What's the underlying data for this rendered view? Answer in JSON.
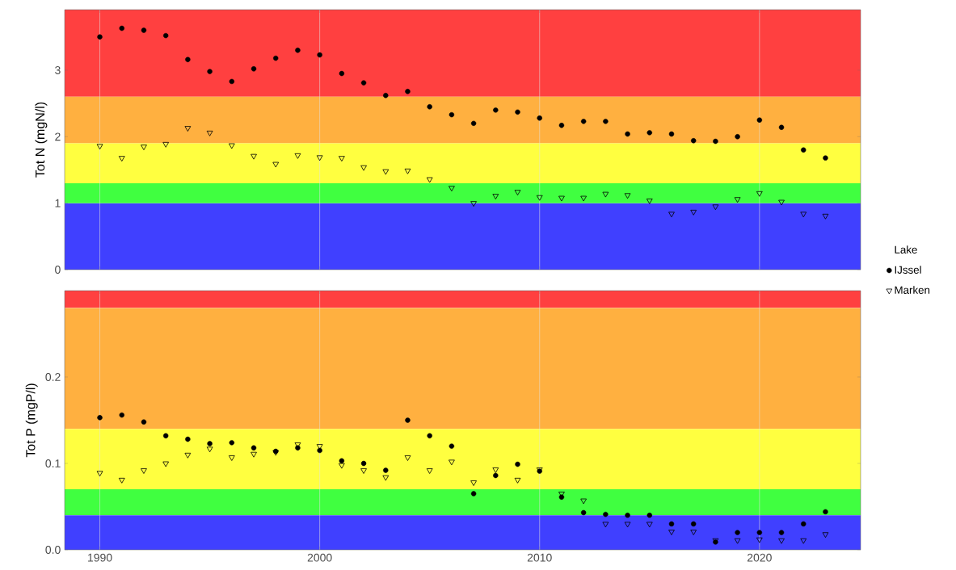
{
  "chart_data": [
    {
      "type": "scatter",
      "ylabel": "Tot N (mgN/l)",
      "legend_title": "Lake",
      "legend": "right",
      "grid": "x",
      "tick_labels": "y",
      "x": [
        1990,
        1991,
        1992,
        1993,
        1994,
        1995,
        1996,
        1997,
        1998,
        1999,
        2000,
        2001,
        2002,
        2003,
        2004,
        2005,
        2006,
        2007,
        2008,
        2009,
        2010,
        2011,
        2012,
        2013,
        2014,
        2015,
        2016,
        2017,
        2018,
        2019,
        2020,
        2021,
        2022,
        2023
      ],
      "xlim": [
        1988.4,
        2024.6
      ],
      "xticks": [
        1990,
        2000,
        2010,
        2020
      ],
      "ylim": [
        0,
        3.91
      ],
      "yticks": [
        0,
        1,
        2,
        3
      ],
      "bands": [
        {
          "axis": "y",
          "from": 2.6,
          "to": 3.91,
          "color": "#ff4040"
        },
        {
          "axis": "y",
          "from": 1.9,
          "to": 2.6,
          "color": "#ffb040"
        },
        {
          "axis": "y",
          "from": 1.3,
          "to": 1.9,
          "color": "#ffff40"
        },
        {
          "axis": "y",
          "from": 1.0,
          "to": 1.3,
          "color": "#40ff40"
        },
        {
          "axis": "y",
          "from": 0,
          "to": 1.0,
          "color": "#4040ff"
        }
      ],
      "series": [
        {
          "name": "IJssel",
          "color": "#000000",
          "marker": "circle",
          "values": [
            3.5,
            3.63,
            3.6,
            3.52,
            3.16,
            2.98,
            2.83,
            3.02,
            3.18,
            3.3,
            3.23,
            2.95,
            2.81,
            2.62,
            2.68,
            2.45,
            2.33,
            2.2,
            2.4,
            2.37,
            2.28,
            2.17,
            2.23,
            2.23,
            2.04,
            2.06,
            2.04,
            1.94,
            1.93,
            2.0,
            2.25,
            2.14,
            1.8,
            1.68
          ]
        },
        {
          "name": "Marken",
          "color": "#000000",
          "marker": "triangle",
          "values": [
            1.86,
            1.68,
            1.85,
            1.89,
            2.13,
            2.06,
            1.87,
            1.71,
            1.59,
            1.72,
            1.69,
            1.68,
            1.54,
            1.48,
            1.49,
            1.36,
            1.23,
            1.0,
            1.11,
            1.17,
            1.09,
            1.08,
            1.08,
            1.14,
            1.12,
            1.04,
            0.84,
            0.87,
            0.95,
            1.06,
            1.15,
            1.02,
            0.84,
            0.81
          ]
        }
      ]
    },
    {
      "type": "scatter",
      "ylabel": "Tot P (mgP/l)",
      "grid": "x",
      "x": [
        1990,
        1991,
        1992,
        1993,
        1994,
        1995,
        1996,
        1997,
        1998,
        1999,
        2000,
        2001,
        2002,
        2003,
        2004,
        2005,
        2006,
        2007,
        2008,
        2009,
        2010,
        2011,
        2012,
        2013,
        2014,
        2015,
        2016,
        2017,
        2018,
        2019,
        2020,
        2021,
        2022,
        2023
      ],
      "xlim": [
        1988.4,
        2024.6
      ],
      "xticks": [
        1990,
        2000,
        2010,
        2020
      ],
      "ylim": [
        0,
        0.3
      ],
      "yticks": [
        {
          "value": 0,
          "label": "0.0"
        },
        {
          "value": 0.1,
          "label": "0.1"
        },
        {
          "value": 0.2,
          "label": "0.2"
        }
      ],
      "bands": [
        {
          "axis": "y",
          "from": 0.28,
          "to": 0.3,
          "color": "#ff4040"
        },
        {
          "axis": "y",
          "from": 0.14,
          "to": 0.28,
          "color": "#ffb040"
        },
        {
          "axis": "y",
          "from": 0.07,
          "to": 0.14,
          "color": "#ffff40"
        },
        {
          "axis": "y",
          "from": 0.04,
          "to": 0.07,
          "color": "#40ff40"
        },
        {
          "axis": "y",
          "from": 0,
          "to": 0.04,
          "color": "#4040ff"
        }
      ],
      "series": [
        {
          "color": "#000000",
          "marker": "circle",
          "values": [
            0.153,
            0.156,
            0.148,
            0.132,
            0.128,
            0.123,
            0.124,
            0.118,
            0.114,
            0.118,
            0.115,
            0.103,
            0.1,
            0.092,
            0.15,
            0.132,
            0.12,
            0.065,
            0.086,
            0.099,
            0.091,
            0.061,
            0.043,
            0.041,
            0.04,
            0.04,
            0.03,
            0.03,
            0.009,
            0.02,
            0.02,
            0.02,
            0.03,
            0.044
          ]
        },
        {
          "color": "#000000",
          "marker": "triangle",
          "values": [
            0.089,
            0.081,
            0.092,
            0.1,
            0.11,
            0.117,
            0.107,
            0.111,
            0.113,
            0.122,
            0.12,
            0.098,
            0.092,
            0.084,
            0.107,
            0.092,
            0.102,
            0.078,
            0.093,
            0.081,
            0.093,
            0.065,
            0.057,
            0.03,
            0.03,
            0.03,
            0.021,
            0.021,
            0.011,
            0.011,
            0.012,
            0.011,
            0.011,
            0.018
          ]
        }
      ]
    }
  ]
}
